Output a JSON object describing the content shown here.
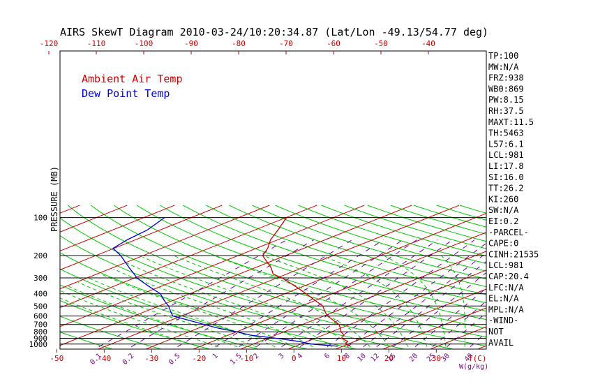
{
  "title": "AIRS SkewT Diagram 2010-03-24/10:20:34.87 (Lat/Lon -49.13/54.77 deg)",
  "colors": {
    "isotherm": "#cc0000",
    "dry_adiabat": "#00c800",
    "moist_adiabat": "#00c800",
    "mixing_ratio": "#6a00a8",
    "temp": "#cc0000",
    "dewpoint": "#0000cc",
    "isobar": "#000000"
  },
  "indices": [
    "TP:100",
    "MW:N/A",
    "FRZ:938",
    "WB0:869",
    "PW:8.15",
    "RH:37.5",
    "MAXT:11.5",
    "TH:5463",
    "L57:6.1",
    "LCL:981",
    "LI:17.8",
    "SI:16.0",
    "TT:26.2",
    "KI:260",
    "SW:N/A",
    "EI:0.2",
    "-PARCEL-",
    "CAPE:0",
    "CINH:21535",
    "LCL:981",
    "CAP:20.4",
    "LFC:N/A",
    "EL:N/A",
    "MPL:N/A",
    "-WIND-",
    "NOT",
    "AVAIL"
  ],
  "chart_data": {
    "type": "line",
    "title": "AIRS SkewT Diagram 2010-03-24/10:20:34.87 (Lat/Lon -49.13/54.77 deg)",
    "ylabel": "PRESSURE (MB)",
    "xlabel_bottom": "T(C)",
    "mixing_label": "W(g/kg)",
    "ylim": [
      1050,
      100
    ],
    "y_scale": "log",
    "pressure_ticks": [
      "100",
      "200",
      "300",
      "400",
      "500",
      "600",
      "700",
      "800",
      "900",
      "1000"
    ],
    "top_temp_ticks": [
      "-120",
      "-110",
      "-100",
      "-90",
      "-80",
      "-70",
      "-60",
      "-50",
      "-40"
    ],
    "bottom_temp_ticks": [
      "-50",
      "-40",
      "-30",
      "-20",
      "-10",
      "0",
      "10",
      "20",
      "30"
    ],
    "mixing_ratio_ticks": [
      "0.1",
      "0.2",
      "0.5",
      "1",
      "1.5",
      "2",
      "3",
      "4",
      "6",
      "8",
      "10",
      "12",
      "15",
      "20",
      "25",
      "30",
      "40"
    ],
    "legend": [
      "Ambient Air Temp",
      "Dew Point Temp"
    ],
    "legend_placement": "top-left",
    "series": [
      {
        "name": "Ambient Air Temp",
        "pressure": [
          1040,
          1000,
          950,
          900,
          850,
          800,
          750,
          700,
          650,
          600,
          550,
          500,
          450,
          400,
          350,
          300,
          280,
          250,
          200,
          175,
          150,
          125,
          100
        ],
        "temperature": [
          11.6,
          9.4,
          8.4,
          5.5,
          4.4,
          2.0,
          0.0,
          -2.3,
          -5.6,
          -9.2,
          -12.3,
          -15.5,
          -20.2,
          -25.5,
          -31.6,
          -38.9,
          -42.8,
          -46.5,
          -54.8,
          -57.6,
          -61.5,
          -65.2,
          -69.9
        ]
      },
      {
        "name": "Dew Point Temp",
        "pressure": [
          1040,
          1000,
          950,
          900,
          850,
          800,
          750,
          700,
          650,
          600,
          550,
          500,
          450,
          400,
          350,
          300,
          280,
          250,
          200,
          175,
          150,
          125,
          100
        ],
        "temperature": [
          9.0,
          2.3,
          -2.1,
          -8.2,
          -15.3,
          -20.0,
          -25.6,
          -30.7,
          -36.0,
          -41.8,
          -44.8,
          -48.0,
          -52.0,
          -56.2,
          -62.5,
          -69.5,
          -72.1,
          -76.4,
          -84.7,
          -90.2,
          -91.7,
          -92.7,
          -95.6
        ]
      }
    ]
  }
}
